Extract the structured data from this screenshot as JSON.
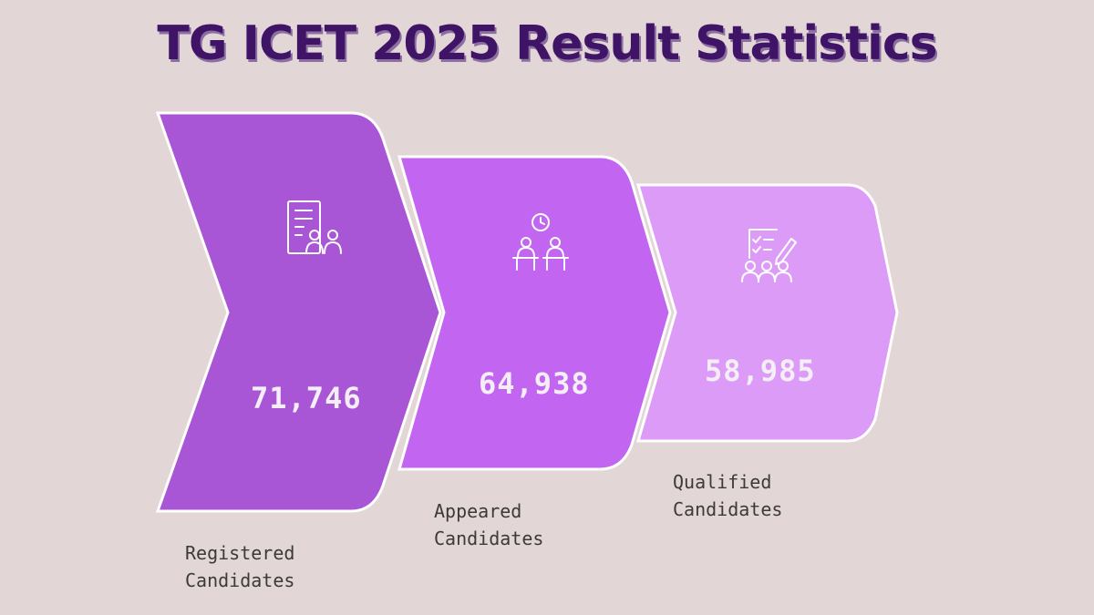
{
  "title": "TG ICET 2025 Result Statistics",
  "colors": {
    "background": "#e3d6d7",
    "title": "#3f1467",
    "step1": "#a855d6",
    "step2": "#c266f2",
    "step3": "#dd9bf8"
  },
  "steps": [
    {
      "icon": "document-with-people-icon",
      "value": "71,746",
      "label": "Registered\nCandidates"
    },
    {
      "icon": "people-with-clock-icon",
      "value": "64,938",
      "label": "Appeared\nCandidates"
    },
    {
      "icon": "checklist-with-people-icon",
      "value": "58,985",
      "label": "Qualified\nCandidates"
    }
  ]
}
